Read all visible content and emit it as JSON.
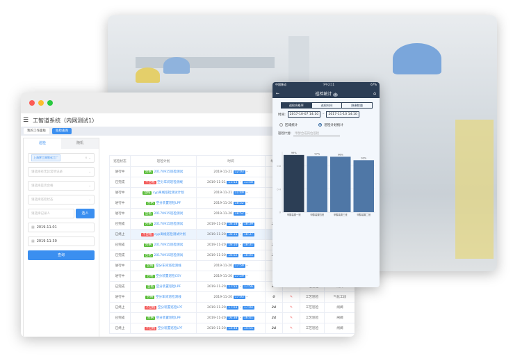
{
  "desktop": {
    "app_title": "工智道系统（内网测试1）",
    "tabs": [
      {
        "label": "我的工作面板"
      },
      {
        "label": "巡检查询"
      }
    ],
    "left_tabs": [
      "巡检",
      "随机"
    ],
    "filters": {
      "factory_tag": "上海界工周智化工厂",
      "anomaly_placeholder": "请选择有无异常项记录",
      "qualified_placeholder": "请选择是否合格",
      "status_placeholder": "请选择巡检状态",
      "recorder_placeholder": "请选择记录人",
      "select_button": "选人",
      "start_date": "2019-11-01",
      "end_date": "2019-11-30",
      "query_button": "查询"
    },
    "table": {
      "headers": [
        "巡检状态",
        "巡检计划",
        "时间",
        "填写",
        "",
        "",
        ""
      ],
      "rows": [
        {
          "status": "进行中",
          "result": "合格",
          "plan": "20170915巡检测试",
          "date": "2019-11-21",
          "start": "12:03",
          "end": "",
          "fill": "0",
          "type": "",
          "area": ""
        },
        {
          "status": "已完成",
          "result": "不合格",
          "plan": "空分车间巡检测线",
          "date": "2019-11-21",
          "start": "11:53",
          "end": "11:58",
          "fill": "8",
          "type": "",
          "area": ""
        },
        {
          "status": "进行中",
          "result": "合格",
          "plan": "cyp离线巡检测试计划",
          "date": "2019-11-21",
          "start": "11:49",
          "end": "",
          "fill": "0",
          "type": "",
          "area": ""
        },
        {
          "status": "进行中",
          "result": "合格",
          "plan": "空分装置巡检LPF",
          "date": "2019-11-20",
          "start": "18:52",
          "end": "",
          "fill": "0",
          "type": "",
          "area": ""
        },
        {
          "status": "进行中",
          "result": "合格",
          "plan": "20170915巡检测试",
          "date": "2019-11-20",
          "start": "18:52",
          "end": "",
          "fill": "0",
          "type": "",
          "area": ""
        },
        {
          "status": "已完成",
          "result": "合格",
          "plan": "20170915巡检测试",
          "date": "2019-11-20",
          "start": "18:18",
          "end": "18:39",
          "fill": "21",
          "type": "",
          "area": ""
        },
        {
          "status": "已终止",
          "result": "不合格",
          "plan": "cyp离线巡检测试计划",
          "date": "2019-11-20",
          "start": "18:15",
          "end": "18:37",
          "fill": "0",
          "type": "",
          "area": ""
        },
        {
          "status": "已完成",
          "result": "合格",
          "plan": "20170915巡检测试",
          "date": "2019-11-20",
          "start": "18:10",
          "end": "18:31",
          "fill": "21",
          "type": "",
          "area": ""
        },
        {
          "status": "已完成",
          "result": "合格",
          "plan": "20170915巡检测试",
          "date": "2019-11-20",
          "start": "18:02",
          "end": "18:04",
          "fill": "21",
          "type": "",
          "area": ""
        },
        {
          "status": "进行中",
          "result": "合格",
          "plan": "空分车间巡检测线",
          "date": "2019-11-20",
          "start": "17:59",
          "end": "",
          "fill": "0",
          "type": "",
          "area": ""
        },
        {
          "status": "进行中",
          "result": "合格",
          "plan": "空分装置巡检CSY",
          "date": "2019-11-20",
          "start": "17:59",
          "end": "",
          "fill": "0",
          "type": "",
          "area": ""
        },
        {
          "status": "已完成",
          "result": "合格",
          "plan": "空分装置巡检LPF",
          "date": "2019-11-20",
          "start": "17:55",
          "end": "17:56",
          "fill": "24",
          "type": "工艺巡检",
          "area": "闸阀"
        },
        {
          "status": "进行中",
          "result": "合格",
          "plan": "空分车间巡检测线",
          "date": "2019-11-20",
          "start": "17:03",
          "end": "",
          "fill": "0",
          "type": "工艺巡检",
          "area": "气化工段"
        },
        {
          "status": "已终止",
          "result": "不合格",
          "plan": "空分装置巡检LPF",
          "date": "2019-11-20",
          "start": "17:03",
          "end": "17:04",
          "fill": "24",
          "type": "工艺巡检",
          "area": "闸阀"
        },
        {
          "status": "已完成",
          "result": "合格",
          "plan": "空分装置巡检LPF",
          "date": "2019-11-20",
          "start": "16:38",
          "end": "16:41",
          "fill": "24",
          "type": "工艺巡检",
          "area": "闸阀"
        },
        {
          "status": "已终止",
          "result": "不合格",
          "plan": "空分装置巡检LPF",
          "date": "2019-11-20",
          "start": "14:48",
          "end": "14:55",
          "fill": "24",
          "type": "工艺巡检",
          "area": "闸阀"
        }
      ]
    }
  },
  "mobile": {
    "status_bar": {
      "carrier": "中国移动",
      "time": "下午2:11",
      "battery": "67%"
    },
    "title": "巡检统计",
    "segments": [
      "巡检合格率",
      "巡检时间",
      "隐患数量"
    ],
    "time_label": "时间:",
    "time_start": "2017-10-07 14:10",
    "time_end": "2017-11-10 14:10",
    "radio": [
      "区域统计",
      "巡检计划统计"
    ],
    "plan_label": "巡检计划:",
    "plan_placeholder": "甲醇合成岗位巡检",
    "chart_data": {
      "type": "bar",
      "categories": [
        "甲醇装置一班",
        "甲醇装置四班",
        "甲醇装置三班",
        "甲醇装置二班"
      ],
      "values": [
        0.99,
        0.97,
        0.96,
        0.9
      ],
      "labels": [
        "99%",
        "97%",
        "96%",
        "90%"
      ],
      "yticks": [
        "0",
        "0.4",
        "0.8"
      ],
      "ylim": [
        0,
        1
      ],
      "colors": [
        "#2c3e55",
        "#4f77a6",
        "#4f77a6",
        "#4f77a6"
      ]
    }
  }
}
